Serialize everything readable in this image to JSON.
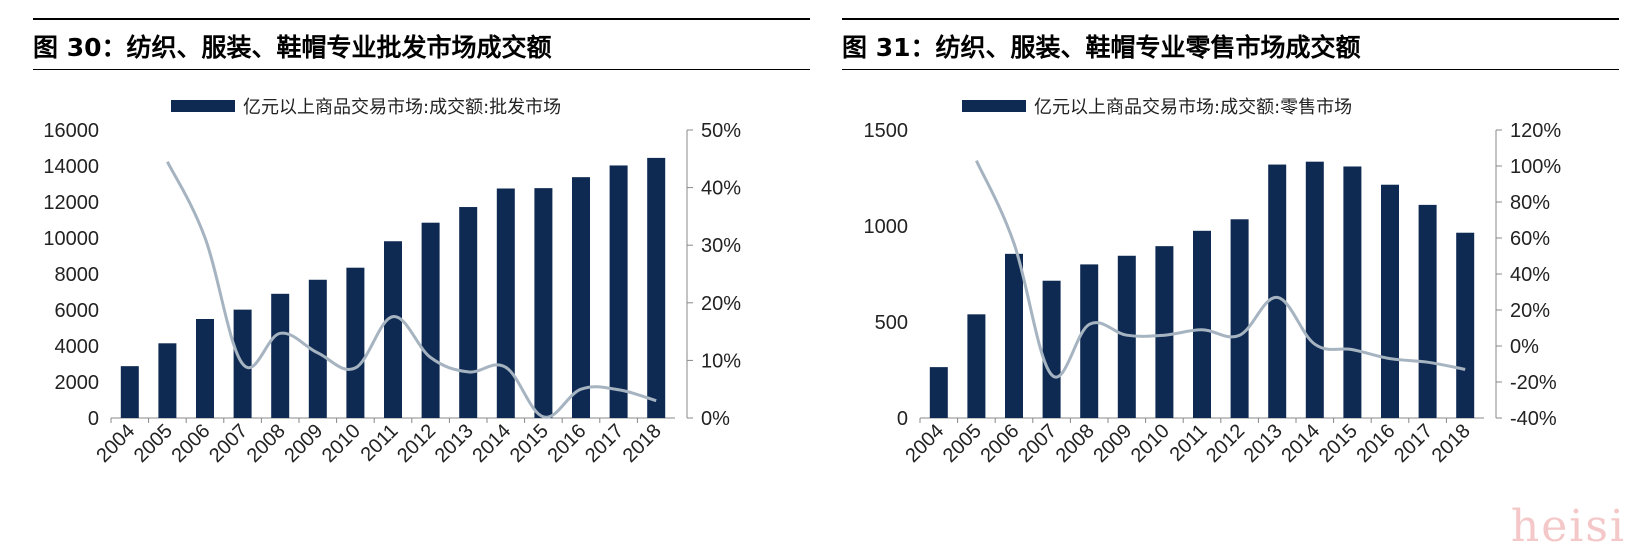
{
  "charts": [
    {
      "figure_title": "图 30：纺织、服装、鞋帽专业批发市场成交额",
      "legend_label": "亿元以上商品交易市场:成交额:批发市场",
      "bar_color": "#0e2a52",
      "line_color": "#a6b3c0",
      "left_ticks": [
        "0",
        "2000",
        "4000",
        "6000",
        "8000",
        "10000",
        "12000",
        "14000",
        "16000"
      ],
      "right_ticks": [
        "0%",
        "10%",
        "20%",
        "30%",
        "40%",
        "50%"
      ]
    },
    {
      "figure_title": "图 31：纺织、服装、鞋帽专业零售市场成交额",
      "legend_label": "亿元以上商品交易市场:成交额:零售市场",
      "bar_color": "#0e2a52",
      "line_color": "#a6b3c0",
      "left_ticks": [
        "0",
        "500",
        "1000",
        "1500"
      ],
      "right_ticks": [
        "-40%",
        "-20%",
        "0%",
        "20%",
        "40%",
        "60%",
        "80%",
        "100%",
        "120%"
      ]
    }
  ],
  "watermark": "heisi",
  "chart_data": [
    {
      "type": "bar",
      "title": "图 30：纺织、服装、鞋帽专业批发市场成交额",
      "categories": [
        "2004",
        "2005",
        "2006",
        "2007",
        "2008",
        "2009",
        "2010",
        "2011",
        "2012",
        "2013",
        "2014",
        "2015",
        "2016",
        "2017",
        "2018"
      ],
      "series": [
        {
          "name": "亿元以上商品交易市场:成交额:批发市场",
          "axis": "left",
          "values": [
            2880,
            4150,
            5500,
            6020,
            6900,
            7680,
            8350,
            9820,
            10850,
            11720,
            12750,
            12770,
            13380,
            14030,
            14450
          ]
        },
        {
          "axis": "right",
          "type": "line",
          "values": [
            null,
            44.5,
            31.3,
            9.4,
            14.7,
            11.3,
            8.7,
            17.6,
            10.5,
            8.0,
            8.8,
            0.2,
            5.0,
            4.9,
            3.0
          ]
        }
      ],
      "ylim_left": [
        0,
        16000
      ],
      "ylim_right": [
        0,
        50
      ],
      "legend_position": "top",
      "grid": false
    },
    {
      "type": "bar",
      "title": "图 31：纺织、服装、鞋帽专业零售市场成交额",
      "categories": [
        "2004",
        "2005",
        "2006",
        "2007",
        "2008",
        "2009",
        "2010",
        "2011",
        "2012",
        "2013",
        "2014",
        "2015",
        "2016",
        "2017",
        "2018"
      ],
      "series": [
        {
          "name": "亿元以上商品交易市场:成交额:零售市场",
          "axis": "left",
          "values": [
            265,
            540,
            855,
            715,
            800,
            845,
            895,
            975,
            1035,
            1320,
            1335,
            1310,
            1215,
            1110,
            965
          ]
        },
        {
          "axis": "right",
          "type": "line",
          "values": [
            null,
            103,
            57,
            -16,
            12,
            6,
            6,
            9,
            6,
            27,
            1,
            -2,
            -7,
            -9,
            -13
          ]
        }
      ],
      "ylim_left": [
        0,
        1500
      ],
      "ylim_right": [
        -40,
        120
      ],
      "legend_position": "top",
      "grid": false
    }
  ]
}
